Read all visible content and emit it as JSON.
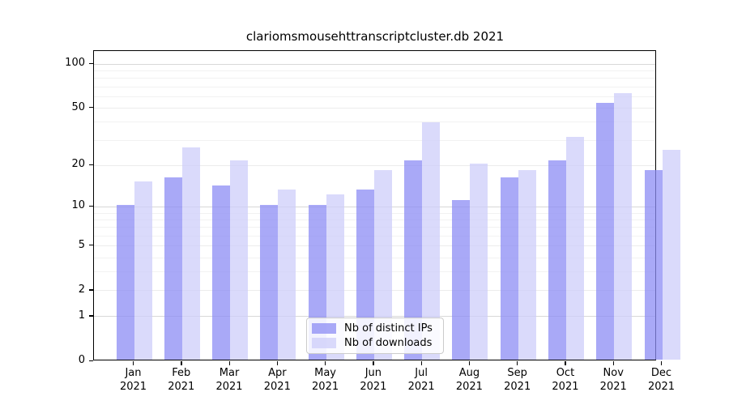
{
  "title": "clariomsmousehttranscriptcluster.db 2021",
  "chart_data": {
    "type": "bar",
    "title": "clariomsmousehttranscriptcluster.db 2021",
    "scale": "log1p",
    "ylim": [
      0,
      123
    ],
    "yticks": [
      0,
      1,
      2,
      5,
      10,
      20,
      50,
      100
    ],
    "grid": true,
    "categories": [
      "Jan",
      "Feb",
      "Mar",
      "Apr",
      "May",
      "Jun",
      "Jul",
      "Aug",
      "Sep",
      "Oct",
      "Nov",
      "Dec"
    ],
    "year_label": "2021",
    "series": [
      {
        "name": "Nb of distinct IPs",
        "key": "distinct-ips",
        "color": "rgba(140,140,244,0.75)",
        "values": [
          10,
          16,
          14,
          10,
          10,
          13,
          21,
          11,
          16,
          21,
          53,
          18
        ]
      },
      {
        "name": "Nb of downloads",
        "key": "downloads",
        "color": "rgba(205,205,250,0.75)",
        "values": [
          15,
          26,
          21,
          13,
          12,
          18,
          39,
          20,
          18,
          31,
          62,
          25
        ]
      }
    ],
    "legend_position": "lower center",
    "colors": {
      "grid_decade": "#d8d8d8",
      "grid_major": "#ececec",
      "grid_minor": "#f2f2f2",
      "spine": "#000000",
      "background": "#ffffff"
    }
  }
}
